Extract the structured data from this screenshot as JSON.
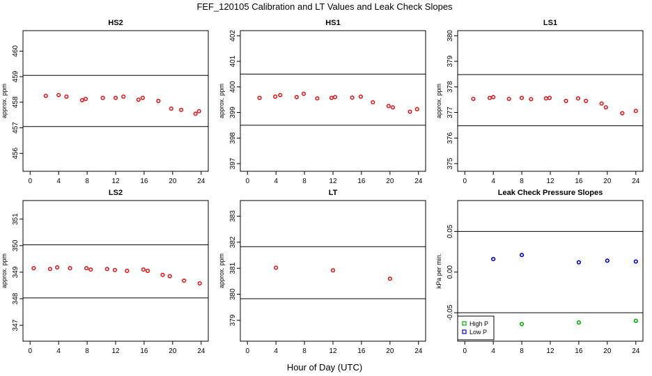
{
  "figure": {
    "title": "FEF_120105  Calibration and LT Values and Leak Check Slopes",
    "xlabel": "Hour of Day (UTC)"
  },
  "colors": {
    "red": "#e41a1c",
    "blue": "#0000cc",
    "green": "#00b000",
    "line": "#000000"
  },
  "chart_data": [
    {
      "type": "scatter",
      "title": "HS2",
      "ylabel": "approx. ppm",
      "xlim": [
        -1,
        25
      ],
      "ylim": [
        455.3,
        460.8
      ],
      "xticks": [
        0,
        4,
        8,
        12,
        16,
        20,
        24
      ],
      "yticks": [
        456,
        457,
        458,
        459,
        460
      ],
      "hlines": [
        459.05,
        457.05
      ],
      "series": [
        {
          "color": "#e41a1c",
          "x": [
            2.2,
            4,
            5.1,
            7.3,
            7.8,
            10.2,
            12,
            13.1,
            15.2,
            15.8,
            18,
            19.8,
            21.2,
            23.2,
            23.7
          ],
          "y": [
            458.25,
            458.28,
            458.22,
            458.08,
            458.13,
            458.17,
            458.17,
            458.22,
            458.1,
            458.17,
            458.05,
            457.75,
            457.7,
            457.55,
            457.65
          ]
        }
      ]
    },
    {
      "type": "scatter",
      "title": "HS1",
      "ylabel": "approx. ppm",
      "xlim": [
        -1,
        25
      ],
      "ylim": [
        396.7,
        402.2
      ],
      "xticks": [
        0,
        4,
        8,
        12,
        16,
        20,
        24
      ],
      "yticks": [
        397,
        398,
        399,
        400,
        401,
        402
      ],
      "hlines": [
        400.5,
        398.5
      ],
      "series": [
        {
          "color": "#e41a1c",
          "x": [
            1.7,
            3.9,
            4.6,
            6.9,
            7.9,
            9.8,
            11.8,
            12.3,
            14.7,
            15.9,
            17.6,
            19.8,
            20.4,
            22.8,
            23.8
          ],
          "y": [
            399.57,
            399.62,
            399.68,
            399.6,
            399.73,
            399.55,
            399.57,
            399.6,
            399.58,
            399.62,
            399.4,
            399.25,
            399.2,
            399.03,
            399.13
          ]
        }
      ]
    },
    {
      "type": "scatter",
      "title": "LS1",
      "ylabel": "approx. ppm",
      "xlim": [
        -1,
        25
      ],
      "ylim": [
        374.7,
        380.2
      ],
      "xticks": [
        0,
        4,
        8,
        12,
        16,
        20,
        24
      ],
      "yticks": [
        375,
        376,
        377,
        378,
        379,
        380
      ],
      "hlines": [
        378.48,
        376.48
      ],
      "series": [
        {
          "color": "#e41a1c",
          "x": [
            1.2,
            3.5,
            4,
            6.2,
            8,
            9.3,
            11.4,
            11.9,
            14.2,
            15.9,
            17,
            19.2,
            19.8,
            22.1,
            24
          ],
          "y": [
            377.53,
            377.57,
            377.6,
            377.53,
            377.57,
            377.52,
            377.55,
            377.57,
            377.45,
            377.55,
            377.45,
            377.35,
            377.2,
            376.97,
            377.06
          ]
        }
      ]
    },
    {
      "type": "scatter",
      "title": "LS2",
      "ylabel": "approx. ppm",
      "xlim": [
        -1,
        25
      ],
      "ylim": [
        346.4,
        351.7
      ],
      "xticks": [
        0,
        4,
        8,
        12,
        16,
        20,
        24
      ],
      "yticks": [
        347,
        348,
        349,
        350,
        351
      ],
      "hlines": [
        350.03,
        348.03
      ],
      "series": [
        {
          "color": "#e41a1c",
          "x": [
            0.5,
            2.8,
            3.8,
            5.6,
            7.9,
            8.5,
            10.8,
            11.9,
            13.6,
            15.9,
            16.5,
            18.6,
            19.6,
            21.6,
            23.8
          ],
          "y": [
            349.15,
            349.12,
            349.18,
            349.15,
            349.15,
            349.1,
            349.12,
            349.08,
            349.05,
            349.1,
            349.05,
            348.9,
            348.85,
            348.68,
            348.58
          ]
        }
      ]
    },
    {
      "type": "scatter",
      "title": "LT",
      "ylabel": "approx. ppm",
      "xlim": [
        -1,
        25
      ],
      "ylim": [
        378.2,
        383.6
      ],
      "xticks": [
        0,
        4,
        8,
        12,
        16,
        20,
        24
      ],
      "yticks": [
        379,
        380,
        381,
        382,
        383
      ],
      "hlines": [
        381.83,
        379.83
      ],
      "series": [
        {
          "color": "#e41a1c",
          "x": [
            4,
            12,
            20
          ],
          "y": [
            381.02,
            380.92,
            380.6
          ]
        }
      ]
    },
    {
      "type": "scatter",
      "title": "Leak Check Pressure Slopes",
      "ylabel": "kPa per min.",
      "xlim": [
        -1,
        25
      ],
      "ylim": [
        -0.085,
        0.088
      ],
      "xticks": [
        0,
        4,
        8,
        12,
        16,
        20,
        24
      ],
      "yticks": [
        -0.05,
        0.0,
        0.05
      ],
      "ytick_labels": [
        "-0.05",
        "0.00",
        "0.05"
      ],
      "hlines": [
        0.05,
        -0.05
      ],
      "legend": {
        "position": "bottom-left",
        "entries": [
          "High P",
          "Low P"
        ]
      },
      "series": [
        {
          "name": "High P",
          "color": "#00b000",
          "x": [
            8,
            16,
            24
          ],
          "y": [
            -0.064,
            -0.062,
            -0.06
          ]
        },
        {
          "name": "Low P",
          "color": "#0000cc",
          "x": [
            4,
            8,
            16,
            20,
            24
          ],
          "y": [
            0.016,
            0.021,
            0.012,
            0.014,
            0.013
          ]
        }
      ]
    }
  ]
}
